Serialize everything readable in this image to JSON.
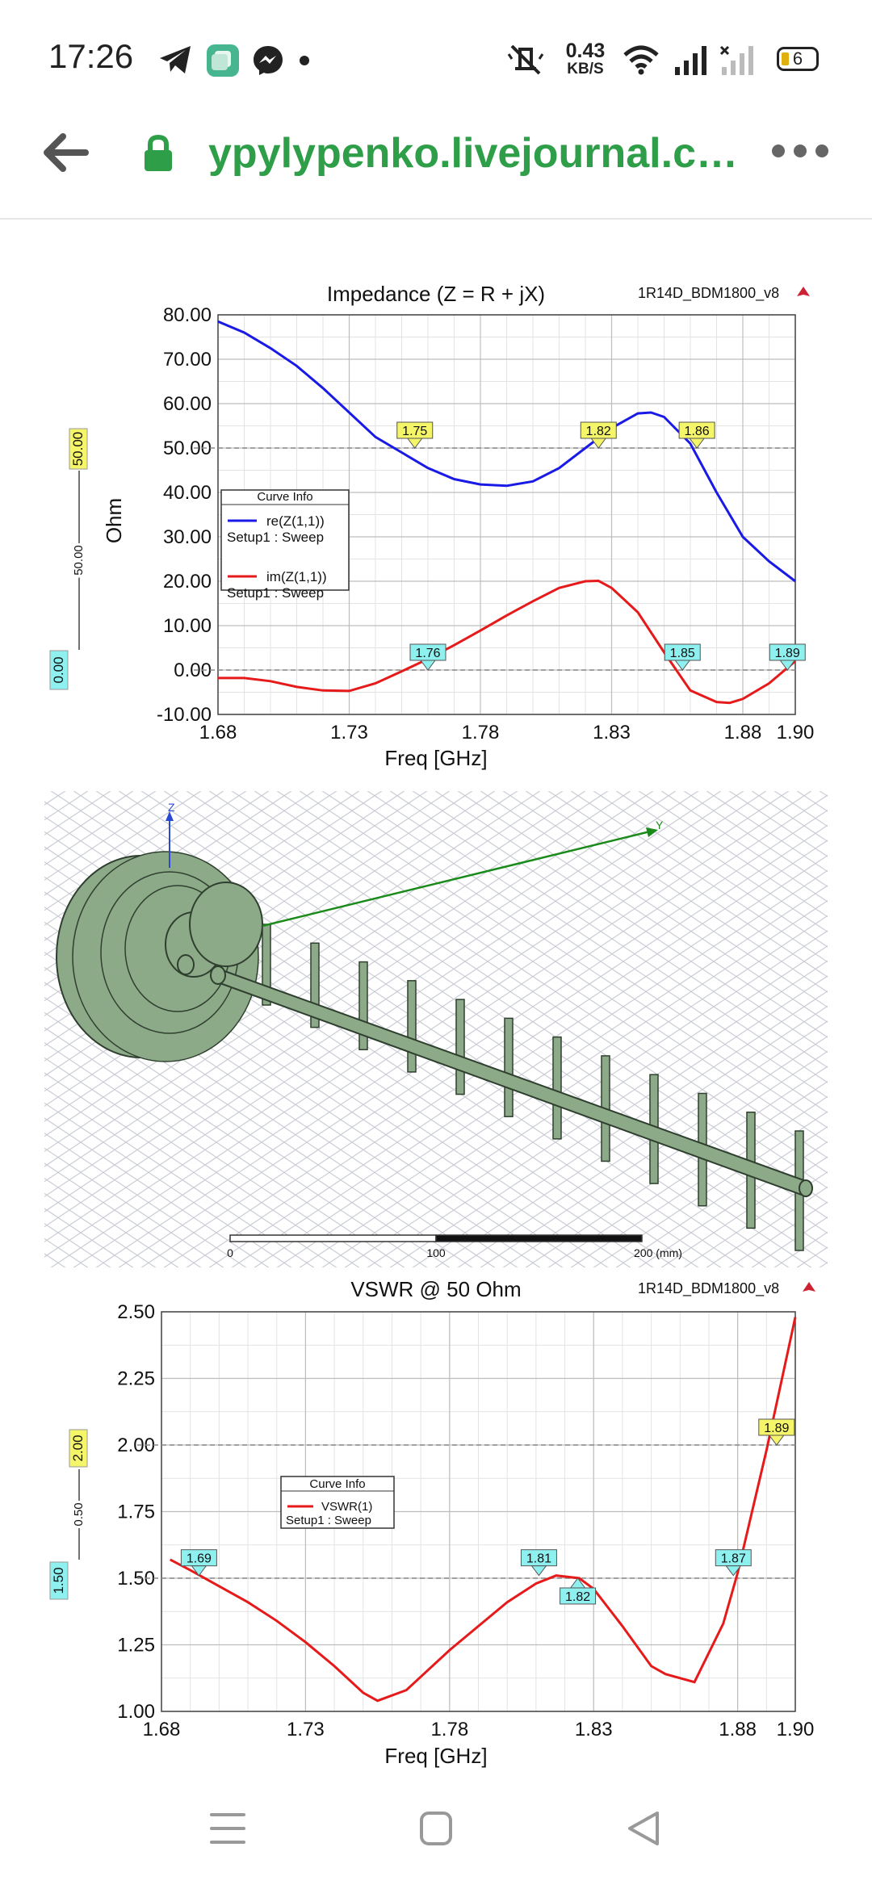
{
  "status_bar": {
    "time": "17:26",
    "net_speed_value": "0.43",
    "net_speed_unit": "KB/S",
    "battery": "6",
    "icons": [
      "telegram-icon",
      "gallery-icon",
      "messenger-icon",
      "dot-icon",
      "mute-icon",
      "wifi-icon",
      "signal-icon",
      "signal-off-icon",
      "battery-icon"
    ]
  },
  "browser": {
    "url": "ypylypenko.livejournal.c…",
    "icons": [
      "back-arrow-icon",
      "lock-icon",
      "more-icon"
    ],
    "accent": "#2e9e49"
  },
  "impedance_chart": {
    "project": "1R14D_BDM1800_v8",
    "ylabel": "Ohm",
    "legend_title": "Curve Info",
    "ref_lines": [
      {
        "value": "50.00"
      },
      {
        "value": "0.00"
      }
    ],
    "ref_delta": "50.00",
    "chart_data": {
      "type": "line",
      "title": "Impedance (Z = R + jX)",
      "xlabel": "Freq [GHz]",
      "ylabel": "Ohm",
      "xlim": [
        1.68,
        1.9
      ],
      "ylim": [
        -10,
        80
      ],
      "xticks": [
        "1.68",
        "1.73",
        "1.78",
        "1.83",
        "1.88",
        "1.90"
      ],
      "yticks": [
        "80.00",
        "70.00",
        "60.00",
        "50.00",
        "40.00",
        "30.00",
        "20.00",
        "10.00",
        "0.00",
        "-10.00"
      ],
      "series": [
        {
          "name": "re(Z(1,1))",
          "sub": "Setup1 : Sweep",
          "color": "#1a1ae6",
          "x": [
            1.68,
            1.69,
            1.7,
            1.71,
            1.72,
            1.73,
            1.74,
            1.75,
            1.76,
            1.77,
            1.78,
            1.79,
            1.8,
            1.81,
            1.82,
            1.83,
            1.84,
            1.845,
            1.85,
            1.86,
            1.87,
            1.88,
            1.89,
            1.9
          ],
          "y": [
            78.5,
            76,
            72.5,
            68.5,
            63.5,
            58,
            52.5,
            49,
            45.5,
            43,
            41.8,
            41.5,
            42.5,
            45.5,
            50,
            54.5,
            57.8,
            58,
            57,
            51,
            40,
            30,
            24.5,
            20
          ]
        },
        {
          "name": "im(Z(1,1))",
          "sub": "Setup1 : Sweep",
          "color": "#e61a1a",
          "x": [
            1.68,
            1.69,
            1.7,
            1.71,
            1.72,
            1.73,
            1.74,
            1.75,
            1.76,
            1.77,
            1.78,
            1.79,
            1.8,
            1.81,
            1.82,
            1.825,
            1.83,
            1.84,
            1.85,
            1.86,
            1.87,
            1.875,
            1.88,
            1.89,
            1.9
          ],
          "y": [
            -1.8,
            -1.8,
            -2.5,
            -3.8,
            -4.6,
            -4.7,
            -3,
            -0.3,
            2.5,
            5.6,
            8.9,
            12.3,
            15.5,
            18.5,
            20,
            20.1,
            18.5,
            13,
            4,
            -4.6,
            -7.2,
            -7.4,
            -6.5,
            -3,
            2
          ]
        }
      ],
      "markers": [
        {
          "label": "1.75",
          "x": 1.755,
          "y": 50,
          "style": "yellow"
        },
        {
          "label": "1.82",
          "x": 1.825,
          "y": 50,
          "style": "yellow"
        },
        {
          "label": "1.86",
          "x": 1.8625,
          "y": 50,
          "style": "yellow"
        },
        {
          "label": "1.76",
          "x": 1.76,
          "y": 0,
          "style": "cyan"
        },
        {
          "label": "1.85",
          "x": 1.857,
          "y": 0,
          "style": "cyan"
        },
        {
          "label": "1.89",
          "x": 1.897,
          "y": 0,
          "style": "cyan"
        }
      ]
    }
  },
  "model_view": {
    "axes": [
      "Z",
      "Y"
    ],
    "scale_labels": [
      "0",
      "100",
      "200 (mm)"
    ],
    "colors": {
      "body": "#8daa88",
      "edge": "#2f3f2f",
      "grid": "#c9ccd4",
      "y_axis": "#1a8a1a",
      "z_axis": "#2a4ad6"
    }
  },
  "vswr_chart": {
    "project": "1R14D_BDM1800_v8",
    "legend_title": "Curve Info",
    "ref_lines": [
      {
        "value": "2.00"
      },
      {
        "value": "1.50"
      }
    ],
    "ref_delta": "0.50",
    "chart_data": {
      "type": "line",
      "title": "VSWR @ 50 Ohm",
      "xlabel": "Freq [GHz]",
      "xlim": [
        1.68,
        1.9
      ],
      "ylim": [
        1.0,
        2.5
      ],
      "xticks": [
        "1.68",
        "1.73",
        "1.78",
        "1.83",
        "1.88",
        "1.90"
      ],
      "yticks": [
        "2.50",
        "2.25",
        "2.00",
        "1.75",
        "1.50",
        "1.25",
        "1.00"
      ],
      "series": [
        {
          "name": "VSWR(1)",
          "sub": "Setup1 : Sweep",
          "color": "#e61a1a",
          "x": [
            1.683,
            1.69,
            1.7,
            1.71,
            1.72,
            1.73,
            1.74,
            1.75,
            1.755,
            1.765,
            1.78,
            1.79,
            1.8,
            1.81,
            1.817,
            1.825,
            1.83,
            1.84,
            1.85,
            1.855,
            1.865,
            1.875,
            1.88,
            1.89,
            1.9
          ],
          "y": [
            1.57,
            1.53,
            1.47,
            1.41,
            1.34,
            1.26,
            1.17,
            1.07,
            1.04,
            1.08,
            1.23,
            1.32,
            1.41,
            1.48,
            1.51,
            1.5,
            1.46,
            1.32,
            1.17,
            1.14,
            1.11,
            1.33,
            1.52,
            1.98,
            2.48
          ]
        }
      ],
      "markers": [
        {
          "label": "1.69",
          "x": 1.693,
          "y": 1.51,
          "style": "cyan"
        },
        {
          "label": "1.81",
          "x": 1.811,
          "y": 1.51,
          "style": "cyan"
        },
        {
          "label": "1.82",
          "x": 1.8245,
          "y": 1.5,
          "style": "cyan-below"
        },
        {
          "label": "1.87",
          "x": 1.8785,
          "y": 1.51,
          "style": "cyan"
        },
        {
          "label": "1.89",
          "x": 1.8935,
          "y": 2.0,
          "style": "yellow"
        }
      ]
    }
  },
  "nav_bar": {
    "icons": [
      "menu-icon",
      "home-icon",
      "back-icon"
    ]
  }
}
